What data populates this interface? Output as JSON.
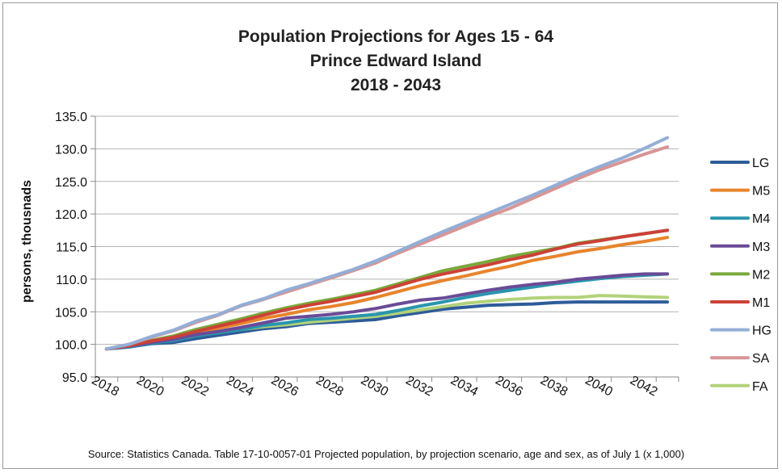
{
  "chart_data": {
    "type": "line",
    "title": "Population Projections for Ages 15 - 64",
    "subtitle": "Prince Edward Island",
    "subtitle2": "2018 - 2043",
    "xlabel": "",
    "ylabel": "persons, thousnads",
    "ylim": [
      95.0,
      135.0
    ],
    "y_ticks": [
      "95.0",
      "100.0",
      "105.0",
      "110.0",
      "115.0",
      "120.0",
      "125.0",
      "130.0",
      "135.0"
    ],
    "x_ticks": [
      "2018",
      "2020",
      "2022",
      "2024",
      "2026",
      "2028",
      "2030",
      "2032",
      "2034",
      "2036",
      "2038",
      "2040",
      "2042"
    ],
    "x": [
      2018,
      2019,
      2020,
      2021,
      2022,
      2023,
      2024,
      2025,
      2026,
      2027,
      2028,
      2029,
      2030,
      2031,
      2032,
      2033,
      2034,
      2035,
      2036,
      2037,
      2038,
      2039,
      2040,
      2041,
      2042,
      2043
    ],
    "legend_position": "right",
    "grid": "horizontal",
    "series": [
      {
        "name": "LG",
        "color": "#2e5c99",
        "values": [
          99.3,
          99.6,
          100.1,
          100.3,
          100.9,
          101.4,
          101.9,
          102.4,
          102.7,
          103.2,
          103.4,
          103.6,
          103.8,
          104.4,
          104.9,
          105.4,
          105.7,
          106.0,
          106.1,
          106.2,
          106.4,
          106.5,
          106.5,
          106.5,
          106.5,
          106.5
        ]
      },
      {
        "name": "M5",
        "color": "#e8842c",
        "values": [
          99.3,
          99.7,
          100.4,
          101.0,
          101.8,
          102.5,
          103.2,
          104.0,
          104.6,
          105.3,
          105.8,
          106.4,
          107.2,
          108.1,
          109.0,
          109.8,
          110.5,
          111.3,
          112.0,
          112.9,
          113.5,
          114.2,
          114.7,
          115.3,
          115.8,
          116.4
        ]
      },
      {
        "name": "M4",
        "color": "#2a95ad",
        "values": [
          99.3,
          99.6,
          100.2,
          100.6,
          101.3,
          101.8,
          102.3,
          102.9,
          103.3,
          103.8,
          104.0,
          104.3,
          104.6,
          105.2,
          105.9,
          106.5,
          107.2,
          107.8,
          108.3,
          108.8,
          109.3,
          109.7,
          110.1,
          110.4,
          110.6,
          110.8
        ]
      },
      {
        "name": "M3",
        "color": "#6a4b96",
        "values": [
          99.3,
          99.7,
          100.3,
          100.8,
          101.5,
          102.0,
          102.6,
          103.3,
          104.0,
          104.3,
          104.6,
          105.0,
          105.5,
          106.2,
          106.8,
          107.1,
          107.7,
          108.3,
          108.8,
          109.2,
          109.5,
          110.0,
          110.3,
          110.6,
          110.8,
          110.8
        ]
      },
      {
        "name": "M2",
        "color": "#7aa83c",
        "values": [
          99.3,
          99.8,
          100.6,
          101.3,
          102.3,
          103.1,
          103.9,
          104.8,
          105.6,
          106.3,
          106.9,
          107.6,
          108.3,
          109.3,
          110.3,
          111.3,
          112.0,
          112.7,
          113.5,
          114.1,
          114.7,
          115.5,
          116.0,
          116.5,
          117.0,
          117.5
        ]
      },
      {
        "name": "M1",
        "color": "#cc4137",
        "values": [
          99.3,
          99.8,
          100.5,
          101.1,
          102.0,
          102.8,
          103.6,
          104.5,
          105.3,
          106.0,
          106.6,
          107.3,
          108.0,
          109.0,
          110.0,
          110.8,
          111.5,
          112.2,
          113.0,
          113.7,
          114.6,
          115.4,
          115.9,
          116.5,
          117.0,
          117.5
        ]
      },
      {
        "name": "HG",
        "color": "#93aed6",
        "values": [
          99.3,
          100.0,
          101.2,
          102.2,
          103.6,
          104.6,
          106.0,
          107.0,
          108.3,
          109.3,
          110.4,
          111.5,
          112.8,
          114.3,
          115.8,
          117.3,
          118.7,
          120.1,
          121.5,
          122.9,
          124.4,
          125.9,
          127.3,
          128.6,
          130.1,
          131.7
        ]
      },
      {
        "name": "SA",
        "color": "#d89595",
        "values": [
          99.3,
          100.0,
          101.1,
          102.1,
          103.4,
          104.5,
          105.9,
          106.9,
          108.0,
          109.1,
          110.2,
          111.3,
          112.5,
          114.0,
          115.4,
          116.8,
          118.2,
          119.6,
          120.9,
          122.4,
          123.9,
          125.4,
          126.8,
          128.0,
          129.2,
          130.3
        ]
      },
      {
        "name": "FA",
        "color": "#b2d27a",
        "values": [
          99.3,
          99.7,
          100.3,
          100.7,
          101.4,
          101.8,
          102.3,
          102.7,
          103.0,
          103.4,
          103.7,
          104.0,
          104.3,
          104.8,
          105.3,
          105.8,
          106.3,
          106.6,
          106.9,
          107.1,
          107.2,
          107.2,
          107.5,
          107.4,
          107.3,
          107.2
        ]
      }
    ],
    "source": "Source: Statistics Canada. Table 17-10-0057-01 Projected population, by projection scenario, age and sex, as of July 1 (x 1,000)"
  }
}
